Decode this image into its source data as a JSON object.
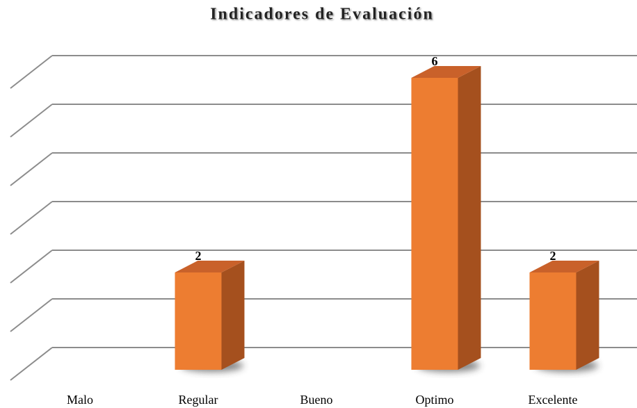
{
  "chart_data": {
    "type": "bar3d",
    "title": "Indicadores de Evaluación",
    "categories": [
      "Malo",
      "Regular",
      "Bueno",
      "Optimo",
      "Excelente"
    ],
    "values": [
      0,
      2,
      0,
      6,
      2
    ],
    "color": "#ed7d31",
    "ylim": [
      0,
      6
    ],
    "yticks": [
      0,
      1,
      2,
      3,
      4,
      5,
      6
    ],
    "grid": true
  }
}
